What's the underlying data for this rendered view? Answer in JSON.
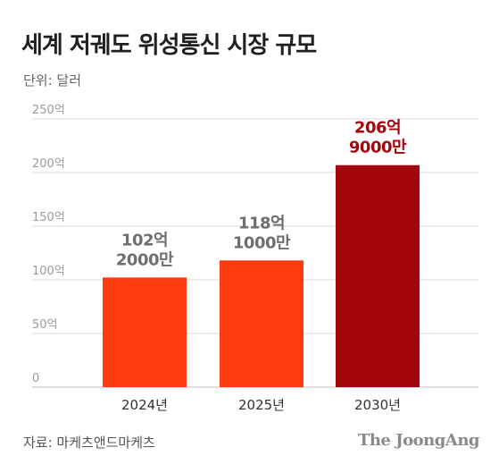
{
  "header": {
    "title": "세계 저궤도 위성통신 시장 규모",
    "unit": "단위: 달러"
  },
  "footer": {
    "source": "자료: 마케츠앤드마케츠",
    "brand": "The JoongAng"
  },
  "colors": {
    "bar_default": "#ff3a0f",
    "bar_highlight": "#a3060b",
    "label_default": "#6e6e6e",
    "label_highlight": "#a3060b",
    "grid": "#d9d9d9",
    "tick": "#9a9a9a"
  },
  "chart_data": {
    "type": "bar",
    "categories": [
      "2024년",
      "2025년",
      "2030년"
    ],
    "values": [
      102.2,
      118.1,
      206.9
    ],
    "data_labels": [
      [
        "102억",
        "2000만"
      ],
      [
        "118억",
        "1000만"
      ],
      [
        "206억",
        "9000만"
      ]
    ],
    "highlight_index": 2,
    "yticks": [
      0,
      50,
      100,
      150,
      200,
      250
    ],
    "ytick_labels": [
      "0",
      "50억",
      "100억",
      "150억",
      "200억",
      "250억"
    ],
    "ylim": [
      0,
      250
    ],
    "grid": true,
    "title": "세계 저궤도 위성통신 시장 규모",
    "ylabel": "단위: 달러",
    "xlabel": ""
  }
}
